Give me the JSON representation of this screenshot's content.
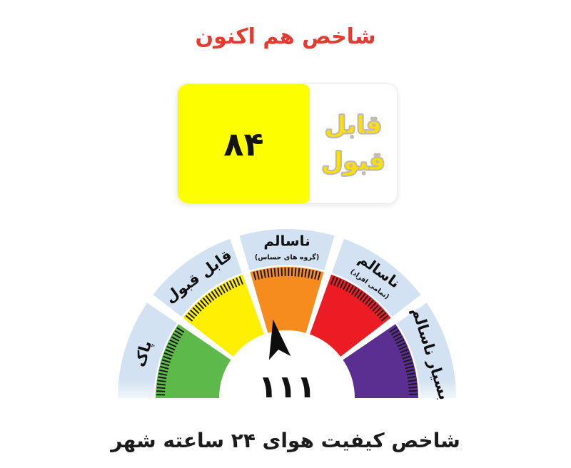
{
  "title": {
    "text": "شاخص هم اکنون",
    "color": "#e23c30"
  },
  "card": {
    "value": "۸۴",
    "value_bg_color": "#fdff00",
    "status_line1": "قابل",
    "status_line2": "قبول",
    "status_text_color": "#ffdf00",
    "status_outline_color": "#b9b9b9"
  },
  "gauge": {
    "value": "۱۱۱",
    "band_color": "#d3e2f2",
    "tick_color": "#1a1a1a",
    "needle_color": "#0d0d0d",
    "needle_angle_deg": 100,
    "segments": [
      {
        "label": "پاک",
        "sublabel": "",
        "color": "#5db94a"
      },
      {
        "label": "قابل قبول",
        "sublabel": "",
        "color": "#ffef00"
      },
      {
        "label": "ناسالم",
        "sublabel": "(گروه های حساس)",
        "color": "#f68b1e"
      },
      {
        "label": "ناسالم",
        "sublabel": "(تمامی افراد)",
        "color": "#ec1c24"
      },
      {
        "label": "بسیار ناسالم",
        "sublabel": "",
        "color": "#5b2e91"
      }
    ]
  },
  "caption": {
    "text": "شاخص کیفیت هوای ۲۴ ساعته شهر"
  },
  "chart_data": {
    "type": "gauge",
    "title": "شاخص هم اکنون",
    "caption": "شاخص کیفیت هوای ۲۴ ساعته شهر",
    "now_index": 84,
    "now_category": "قابل قبول",
    "gauge_value": 111,
    "categories": [
      "پاک",
      "قابل قبول",
      "ناسالم (گروه های حساس)",
      "ناسالم (تمامی افراد)",
      "بسیار ناسالم"
    ],
    "colors": [
      "#5db94a",
      "#ffef00",
      "#f68b1e",
      "#ec1c24",
      "#5b2e91"
    ],
    "label_band_color": "#d3e2f2",
    "layout": "semicircular gauge, 5 equal 36° segments across 180°, outer light-blue label band, black dashed ticks at segment outer edges, black needle pointing into orange segment (~100°), value centered below needle, legend/labels rotated tangentially"
  }
}
